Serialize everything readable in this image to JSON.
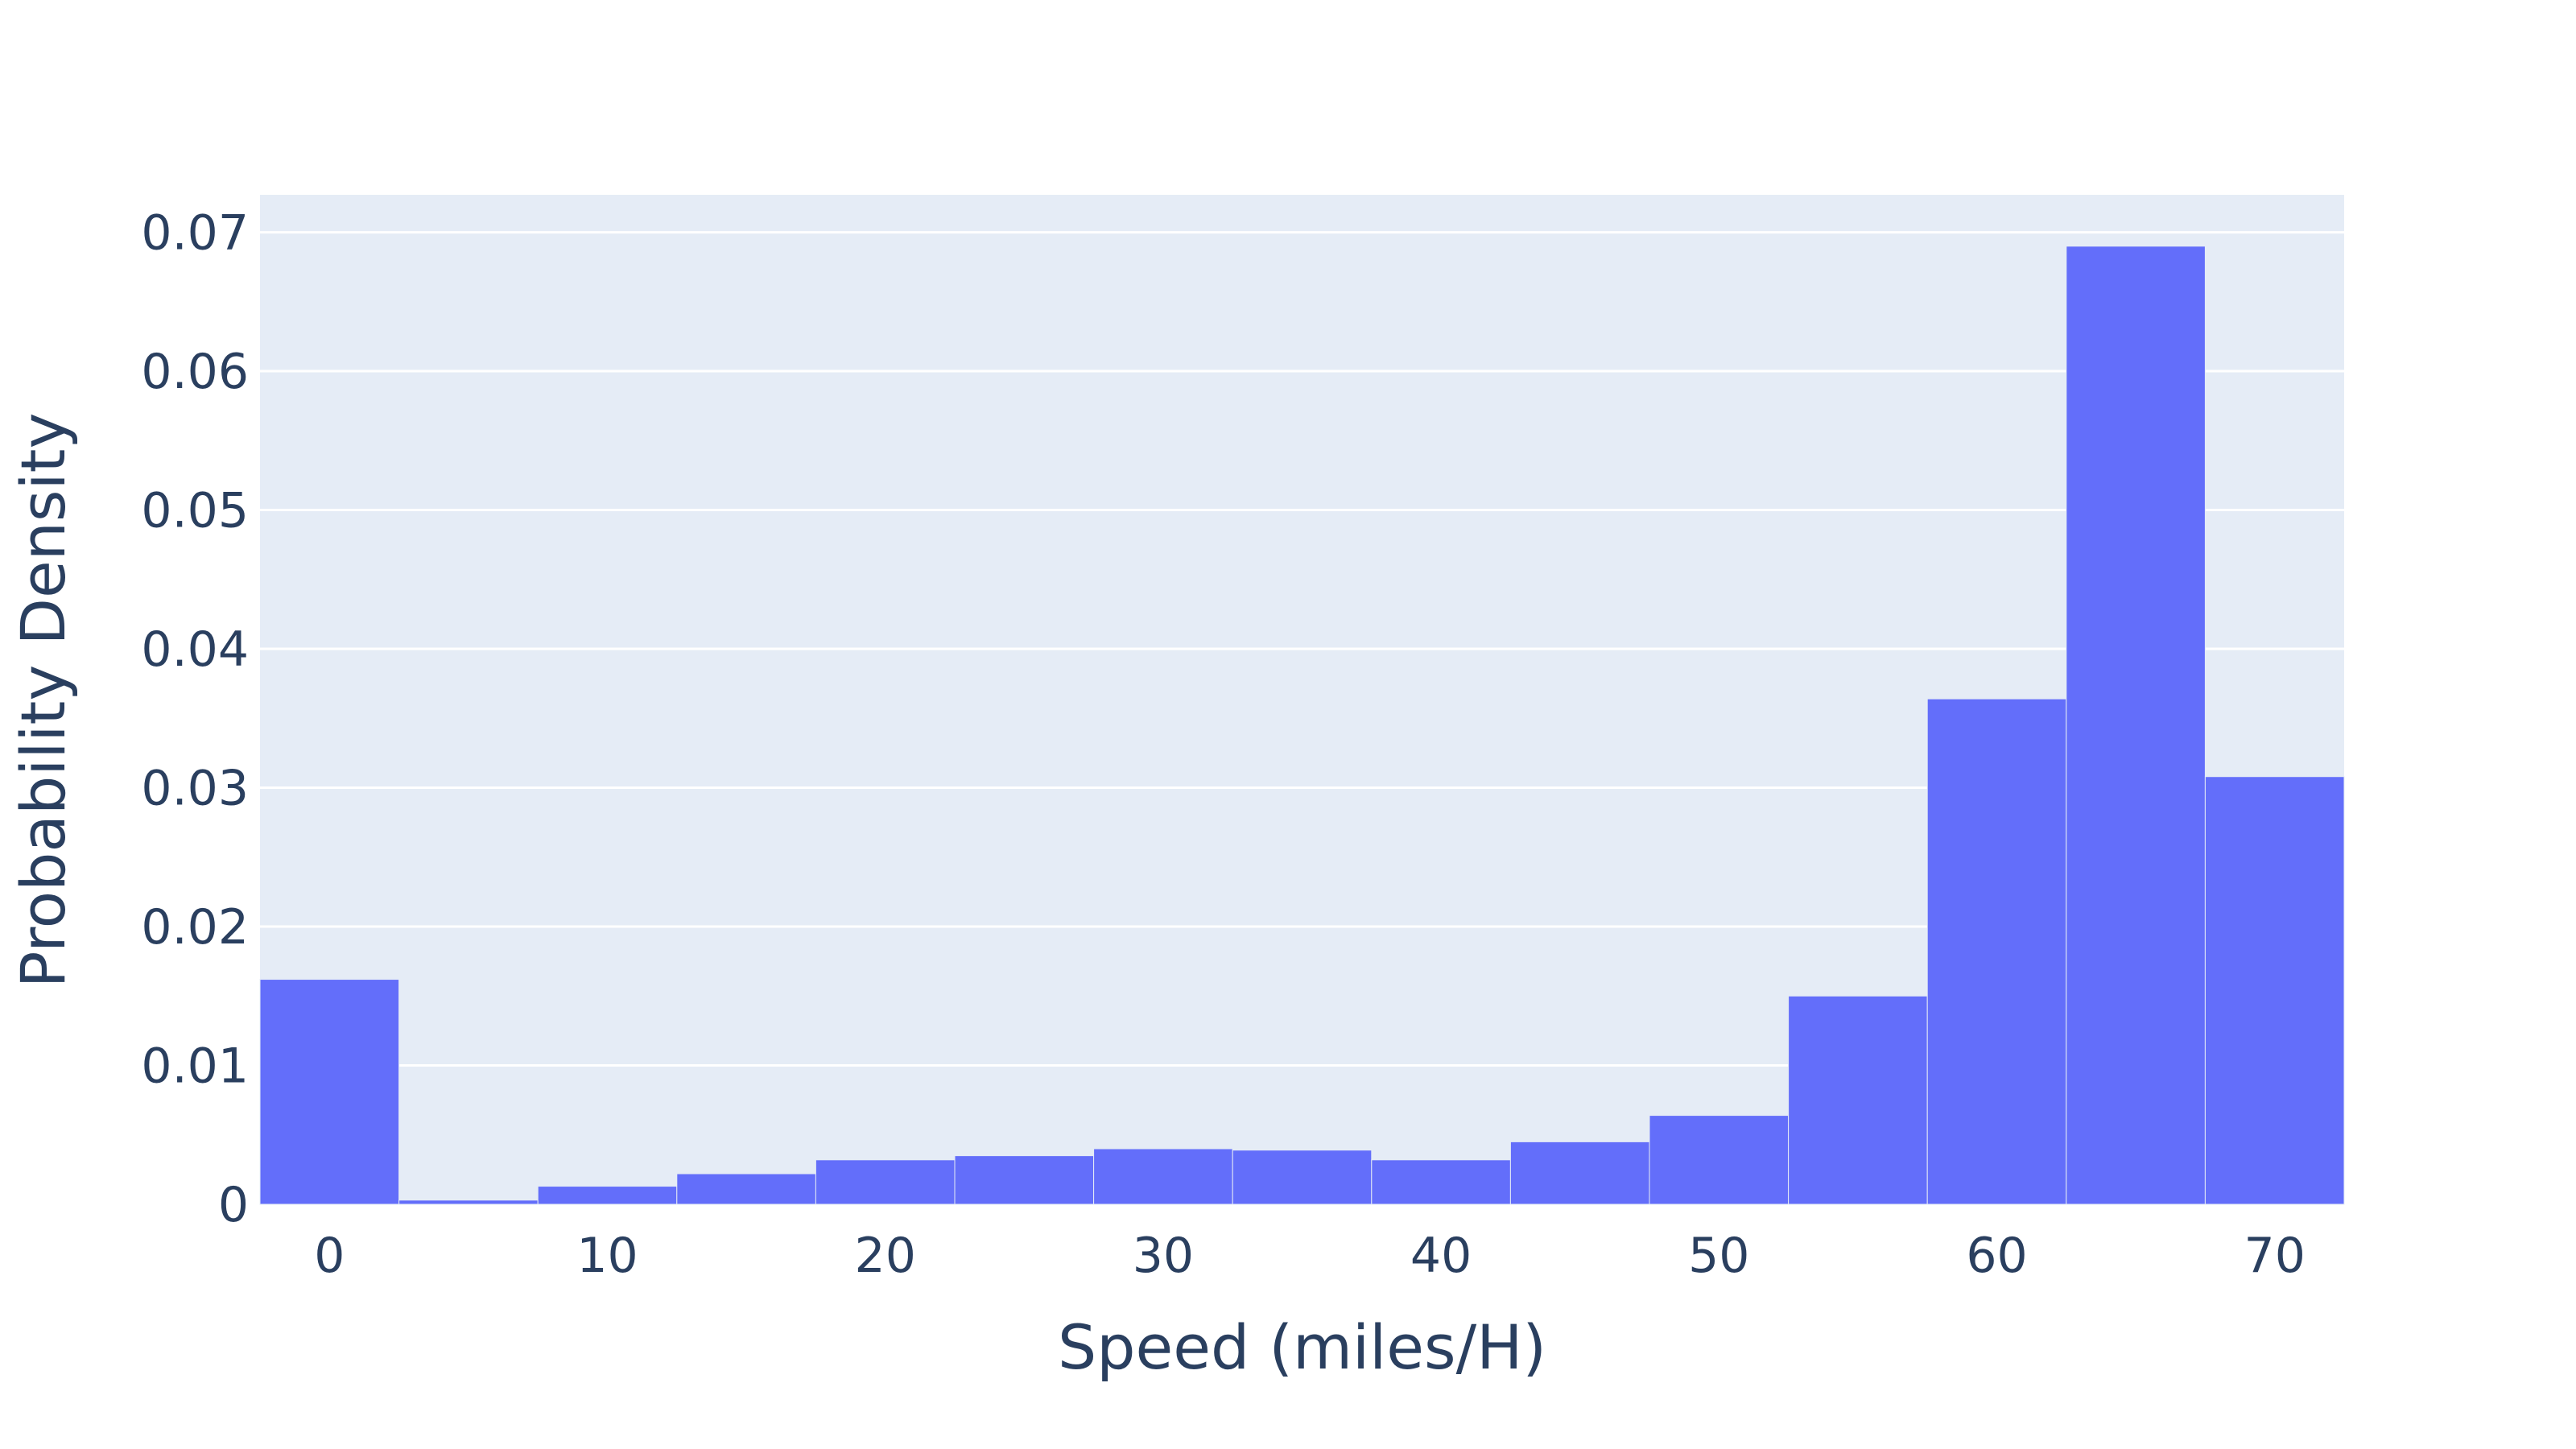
{
  "chart_data": {
    "type": "bar",
    "title": "",
    "xlabel": "Speed (miles/H)",
    "ylabel": "Probability Density",
    "bin_edges": [
      -2.5,
      2.5,
      7.5,
      12.5,
      17.5,
      22.5,
      27.5,
      32.5,
      37.5,
      42.5,
      47.5,
      52.5,
      57.5,
      62.5,
      67.5,
      72.5
    ],
    "values": [
      0.0162,
      0.0003,
      0.0013,
      0.0022,
      0.0032,
      0.0035,
      0.004,
      0.0039,
      0.0032,
      0.0045,
      0.0064,
      0.015,
      0.0364,
      0.069,
      0.0308
    ],
    "xlim": [
      -2.5,
      72.5
    ],
    "ylim": [
      0,
      0.0727
    ],
    "xticks": [
      0,
      10,
      20,
      30,
      40,
      50,
      60,
      70
    ],
    "yticks": [
      0,
      0.01,
      0.02,
      0.03,
      0.04,
      0.05,
      0.06,
      0.07
    ],
    "xtick_labels": [
      "0",
      "10",
      "20",
      "30",
      "40",
      "50",
      "60",
      "70"
    ],
    "ytick_labels": [
      "0",
      "0.01",
      "0.02",
      "0.03",
      "0.04",
      "0.05",
      "0.06",
      "0.07"
    ],
    "bar_color": "#636efa",
    "plot_background": "#e5ecf6",
    "grid": true,
    "gridline_color": "#ffffff",
    "text_color": "#2a3f5f",
    "legend": "none"
  }
}
